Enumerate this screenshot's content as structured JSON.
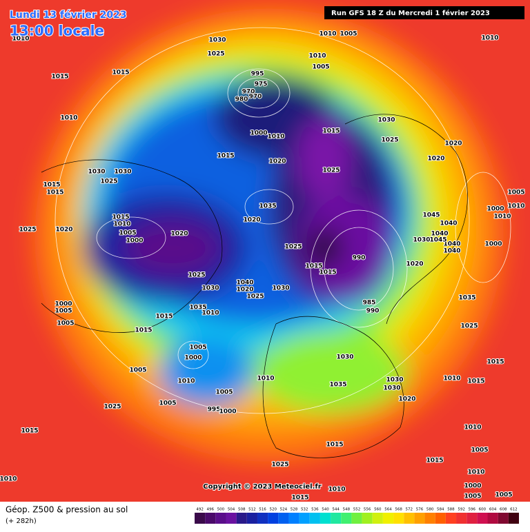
{
  "header": {
    "date": "Lundi 13 février 2023",
    "time": "13:00 locale",
    "run": "Run GFS 18 Z du Mercredi 1 février 2023"
  },
  "footer": {
    "title": "Géop. Z500 & pression au sol",
    "lead": "(+ 282h)",
    "copyright": "Copyright © 2023 Meteociel.fr"
  },
  "scale": {
    "labels": [
      "492",
      "496",
      "500",
      "504",
      "508",
      "512",
      "516",
      "520",
      "524",
      "528",
      "532",
      "536",
      "540",
      "544",
      "548",
      "552",
      "556",
      "560",
      "564",
      "568",
      "572",
      "576",
      "580",
      "584",
      "588",
      "592",
      "596",
      "600",
      "604",
      "608",
      "612"
    ],
    "colors": [
      "#3a0a4a",
      "#4a0a6a",
      "#5a0e8a",
      "#6a12a0",
      "#2a1a8a",
      "#1a20a0",
      "#1030c0",
      "#0040e0",
      "#0060f0",
      "#0080ff",
      "#00a0ff",
      "#00c0f0",
      "#00e0d0",
      "#20e8a0",
      "#40f070",
      "#70f040",
      "#a0f020",
      "#d0f010",
      "#f0f000",
      "#ffe000",
      "#ffc000",
      "#ffa000",
      "#ff8000",
      "#ff6000",
      "#ff4020",
      "#f03030",
      "#e02040",
      "#d01050",
      "#b00a40",
      "#800830",
      "#400010"
    ]
  },
  "map": {
    "isobar_labels": [
      "1010",
      "1030",
      "1010",
      "1005",
      "1010",
      "1025",
      "1010",
      "1005",
      "1015",
      "1015",
      "995",
      "975",
      "970",
      "970",
      "980",
      "1010",
      "1030",
      "1000",
      "1010",
      "1015",
      "1025",
      "1020",
      "1015",
      "1020",
      "1020",
      "1030",
      "1030",
      "1025",
      "1025",
      "1015",
      "1015",
      "1005",
      "1010",
      "1035",
      "1000",
      "1045",
      "1015",
      "1020",
      "1010",
      "1040",
      "1025",
      "1020",
      "1020",
      "1005",
      "1010",
      "1040",
      "1000",
      "1030",
      "1040",
      "1045",
      "1000",
      "1025",
      "1040",
      "1020",
      "990",
      "1015",
      "1025",
      "1015",
      "1040",
      "1020",
      "1030",
      "1025",
      "1030",
      "1035",
      "1000",
      "1005",
      "1035",
      "1010",
      "985",
      "990",
      "1015",
      "1005",
      "1025",
      "1015",
      "1005",
      "1000",
      "1030",
      "1015",
      "1005",
      "1010",
      "1010",
      "1030",
      "1010",
      "1015",
      "1035",
      "1030",
      "1005",
      "1020",
      "1005",
      "1025",
      "995",
      "1000",
      "1015",
      "1010",
      "1015",
      "1005",
      "1015",
      "1025",
      "1010",
      "1010",
      "1000",
      "1005",
      "1015",
      "1005",
      "1010"
    ]
  }
}
